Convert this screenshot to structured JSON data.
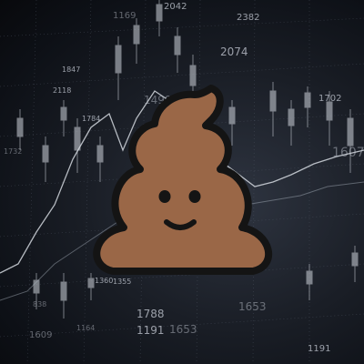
{
  "background": {
    "numbers": [
      "1169",
      "2042",
      "2382",
      "2074",
      "1847",
      "2118",
      "1499",
      "1784",
      "1702",
      "1607",
      "1360",
      "1355",
      "1788",
      "1191",
      "1653",
      "1653",
      "1609",
      "838",
      "1191",
      "1164",
      "1732"
    ]
  },
  "mascot": {
    "icon": "poop-emoji",
    "colors": {
      "body": "#9a6747",
      "outline": "#141414",
      "face": "#141414"
    }
  }
}
